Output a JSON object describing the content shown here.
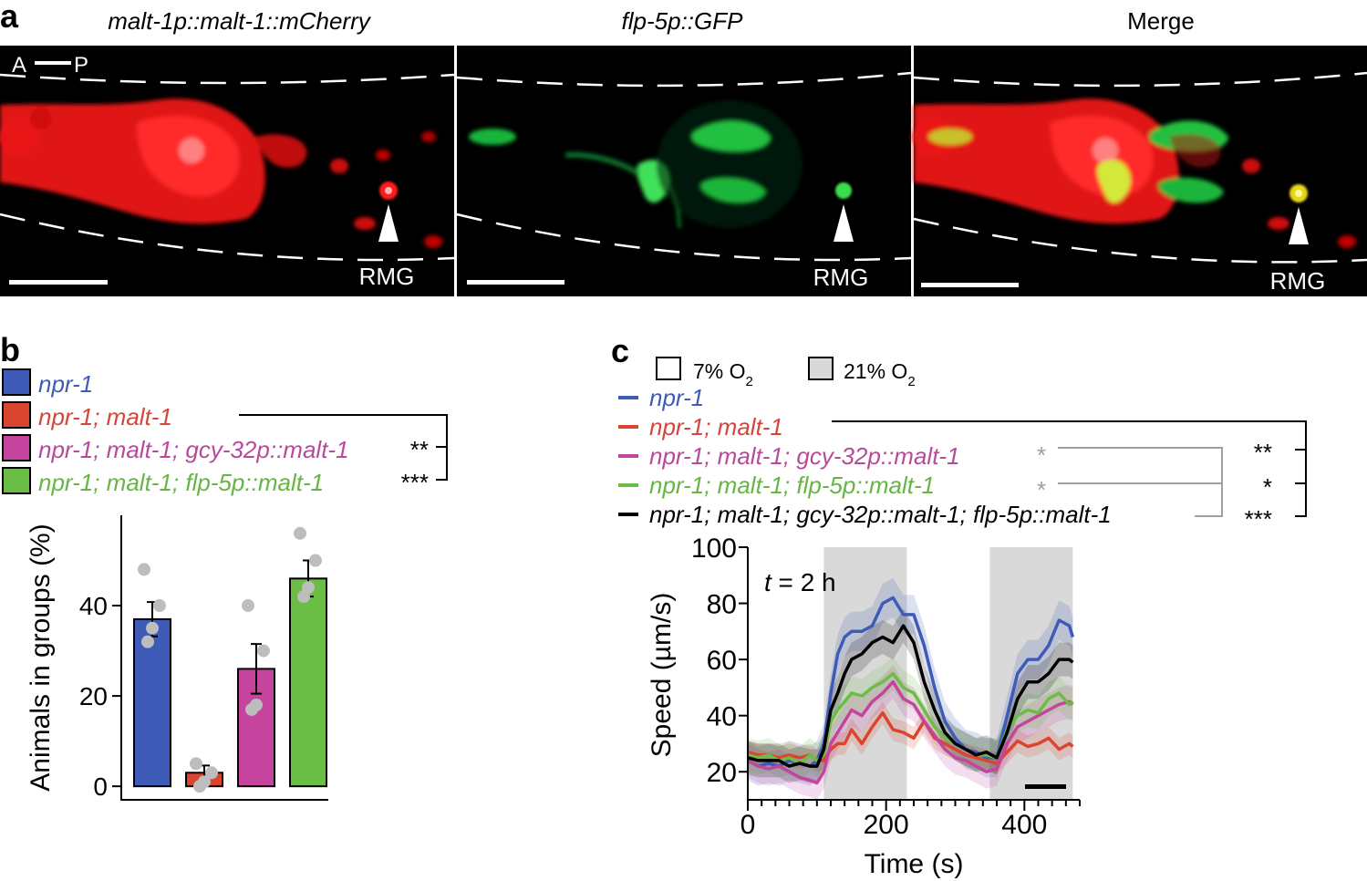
{
  "panel_a": {
    "label": "a",
    "titles": [
      "malt-1p::malt-1::mCherry",
      "flp-5p::GFP",
      "Merge"
    ],
    "axis_anterior": "A",
    "axis_posterior": "P",
    "cell_label": "RMG"
  },
  "panel_b": {
    "label": "b",
    "sig_top": "**",
    "sig_bottom": "***"
  },
  "panel_c": {
    "label": "c",
    "condition_low": "7% O",
    "condition_high": "21% O",
    "o2_sub": "2",
    "t_label_t": "t",
    "t_label_rest": " = 2 h",
    "gray_star": "*",
    "sig": [
      "**",
      "*",
      "***"
    ]
  },
  "colors": {
    "npr1": "#3e5bb8",
    "malt1": "#d9452f",
    "gcy32": "#c4449e",
    "flp5": "#6cbd45",
    "both": "#000000",
    "malt1_text": "#d6453b",
    "gcy32_text": "#b84a9a",
    "flp5_text": "#66b545",
    "gray": "#a0a0a0",
    "shade": "#d9d9d9"
  },
  "chart_data": [
    {
      "type": "bar",
      "panel": "b",
      "categories": [
        "npr-1",
        "npr-1; malt-1",
        "npr-1; malt-1; gcy-32p::malt-1",
        "npr-1; malt-1; flp-5p::malt-1"
      ],
      "values": [
        37,
        3,
        26,
        46
      ],
      "errors": [
        3.8,
        1.6,
        5.5,
        4
      ],
      "points": [
        [
          48,
          40,
          35,
          32
        ],
        [
          5,
          3,
          1,
          0
        ],
        [
          40,
          30,
          18,
          17
        ],
        [
          56,
          50,
          44,
          42
        ]
      ],
      "ylabel": "Animals in groups (%)",
      "yticks": [
        0,
        20,
        40
      ],
      "ylim": [
        -3,
        60
      ]
    },
    {
      "type": "line",
      "panel": "c",
      "xlabel": "Time (s)",
      "ylabel": "Speed (µm/s)",
      "xlim": [
        0,
        480
      ],
      "ylim": [
        10,
        100
      ],
      "xticks": [
        0,
        200,
        400
      ],
      "yticks": [
        20,
        40,
        60,
        80,
        100
      ],
      "shaded_21pct_O2": [
        [
          110,
          230
        ],
        [
          350,
          470
        ]
      ],
      "x": [
        0,
        15,
        30,
        45,
        60,
        75,
        90,
        100,
        110,
        120,
        130,
        140,
        150,
        165,
        180,
        195,
        210,
        225,
        240,
        255,
        270,
        285,
        300,
        315,
        330,
        345,
        360,
        375,
        390,
        405,
        420,
        435,
        450,
        465,
        470
      ],
      "series": [
        {
          "name": "npr-1",
          "color_key": "npr1",
          "band": 7,
          "values": [
            24,
            22,
            23,
            22,
            24,
            23,
            22,
            24,
            30,
            48,
            62,
            68,
            70,
            70,
            72,
            80,
            82,
            76,
            76,
            65,
            50,
            38,
            32,
            28,
            27,
            25,
            25,
            40,
            55,
            60,
            60,
            65,
            74,
            72,
            68
          ]
        },
        {
          "name": "npr-1; malt-1",
          "color_key": "malt1",
          "band": 4,
          "values": [
            27,
            26,
            26,
            25,
            26,
            25,
            26,
            24,
            24,
            28,
            30,
            30,
            35,
            30,
            36,
            41,
            35,
            34,
            32,
            38,
            32,
            30,
            28,
            26,
            25,
            24,
            23,
            27,
            31,
            29,
            30,
            32,
            28,
            30,
            29
          ]
        },
        {
          "name": "npr-1; malt-1; gcy-32p::malt-1",
          "color_key": "gcy32",
          "band": 6,
          "values": [
            24,
            22,
            21,
            22,
            20,
            18,
            17,
            16,
            20,
            30,
            34,
            38,
            42,
            40,
            45,
            48,
            52,
            46,
            44,
            38,
            33,
            28,
            25,
            24,
            22,
            20,
            21,
            30,
            36,
            38,
            40,
            42,
            44,
            45,
            44
          ]
        },
        {
          "name": "npr-1; malt-1; flp-5p::malt-1",
          "color_key": "flp5",
          "band": 6,
          "values": [
            26,
            25,
            26,
            24,
            25,
            23,
            26,
            24,
            26,
            38,
            42,
            45,
            48,
            47,
            50,
            52,
            55,
            50,
            48,
            42,
            36,
            32,
            30,
            28,
            26,
            26,
            25,
            35,
            40,
            42,
            41,
            46,
            48,
            44,
            45
          ]
        },
        {
          "name": "npr-1; malt-1; gcy-32p::malt-1; flp-5p::malt-1",
          "color_key": "both",
          "band": 6,
          "values": [
            25,
            24,
            24,
            24,
            22,
            23,
            22,
            22,
            28,
            42,
            48,
            55,
            60,
            62,
            66,
            68,
            66,
            72,
            66,
            52,
            42,
            34,
            30,
            28,
            26,
            27,
            25,
            34,
            46,
            52,
            52,
            55,
            60,
            60,
            59
          ]
        }
      ]
    }
  ]
}
